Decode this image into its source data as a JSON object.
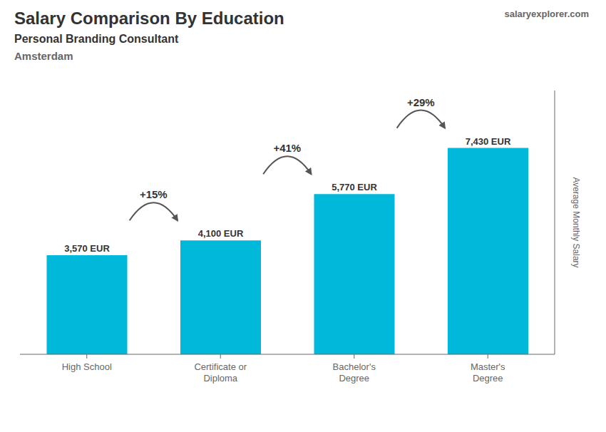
{
  "chart_data": {
    "type": "bar",
    "title": "Salary Comparison By Education",
    "subtitle": "Personal Branding Consultant",
    "annotations": [
      "Amsterdam",
      "salaryexplorer.com"
    ],
    "change_labels": [
      "+15%",
      "+41%",
      "+29%"
    ],
    "categories": [
      "High School",
      "Certificate or\nDiploma",
      "Bachelor's\nDegree",
      "Master's\nDegree"
    ],
    "values": [
      3570,
      4100,
      5770,
      7430
    ],
    "value_labels": [
      "3,570 EUR",
      "4,100 EUR",
      "5,770 EUR",
      "7,430 EUR"
    ],
    "data_labels": true,
    "color": "#00b8d9",
    "ylabel": "Average Monthly Salary",
    "ylim": [
      0,
      9500
    ],
    "grid": false,
    "tick_labels": "x"
  }
}
